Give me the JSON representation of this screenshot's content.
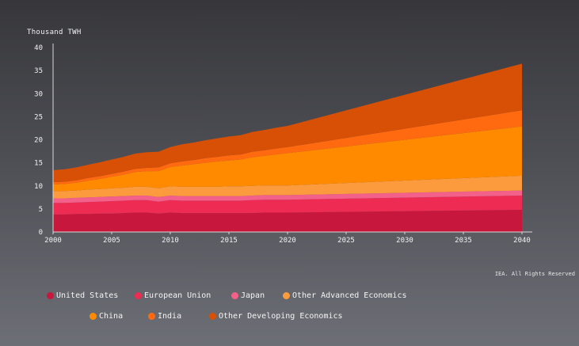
{
  "chart_data": {
    "type": "area",
    "stacked": true,
    "title": "",
    "ylabel": "Thousand TWH",
    "xlabel": "",
    "ylim": [
      0,
      40
    ],
    "xlim": [
      2000,
      2040
    ],
    "yticks": [
      "0",
      "5",
      "10",
      "15",
      "20",
      "25",
      "30",
      "35",
      "40"
    ],
    "xticks": [
      "2000",
      "2005",
      "2010",
      "2015",
      "2020",
      "2025",
      "2030",
      "2035",
      "2040"
    ],
    "x": [
      2000,
      2001,
      2002,
      2003,
      2004,
      2005,
      2006,
      2007,
      2008,
      2009,
      2010,
      2011,
      2012,
      2013,
      2014,
      2015,
      2016,
      2017,
      2018,
      2019,
      2020,
      2040
    ],
    "series": [
      {
        "name": "United States",
        "color": "#c8173c",
        "values": [
          3.8,
          3.8,
          3.9,
          3.9,
          4.0,
          4.0,
          4.1,
          4.2,
          4.2,
          4.0,
          4.2,
          4.1,
          4.1,
          4.1,
          4.1,
          4.1,
          4.1,
          4.1,
          4.2,
          4.2,
          4.2,
          4.8
        ]
      },
      {
        "name": "European Union",
        "color": "#ed2b53",
        "values": [
          2.5,
          2.5,
          2.5,
          2.6,
          2.6,
          2.7,
          2.7,
          2.7,
          2.7,
          2.6,
          2.7,
          2.7,
          2.7,
          2.7,
          2.7,
          2.7,
          2.7,
          2.8,
          2.8,
          2.8,
          2.8,
          3.1
        ]
      },
      {
        "name": "Japan",
        "color": "#f3608a",
        "values": [
          1.0,
          1.0,
          1.0,
          1.0,
          1.0,
          1.0,
          1.0,
          1.0,
          1.0,
          1.0,
          1.0,
          1.0,
          1.0,
          1.0,
          1.0,
          1.0,
          1.0,
          1.0,
          1.0,
          1.0,
          1.0,
          1.1
        ]
      },
      {
        "name": "Other Advanced Economics",
        "color": "#fc9a3e",
        "values": [
          1.6,
          1.6,
          1.6,
          1.7,
          1.7,
          1.8,
          1.8,
          1.9,
          1.9,
          1.9,
          2.0,
          2.0,
          2.0,
          2.0,
          2.0,
          2.1,
          2.1,
          2.1,
          2.1,
          2.1,
          2.1,
          3.2
        ]
      },
      {
        "name": "China",
        "color": "#ff8a00",
        "values": [
          1.4,
          1.5,
          1.7,
          1.9,
          2.2,
          2.5,
          2.8,
          3.2,
          3.4,
          3.7,
          4.2,
          4.6,
          4.9,
          5.2,
          5.5,
          5.6,
          5.8,
          6.2,
          6.4,
          6.7,
          7.0,
          10.7
        ]
      },
      {
        "name": "India",
        "color": "#ff6a10",
        "values": [
          0.5,
          0.5,
          0.5,
          0.6,
          0.6,
          0.6,
          0.7,
          0.7,
          0.7,
          0.8,
          0.8,
          0.9,
          0.9,
          1.0,
          1.0,
          1.1,
          1.1,
          1.2,
          1.2,
          1.3,
          1.3,
          3.5
        ]
      },
      {
        "name": "Other Developing Economics",
        "color": "#d84f06",
        "values": [
          2.6,
          2.7,
          2.8,
          2.9,
          3.0,
          3.1,
          3.2,
          3.3,
          3.4,
          3.4,
          3.5,
          3.7,
          3.8,
          3.9,
          4.0,
          4.1,
          4.2,
          4.3,
          4.4,
          4.5,
          4.6,
          10.1
        ]
      }
    ],
    "credit": "IEA. All Rights Reserved",
    "legend_position": "bottom"
  }
}
